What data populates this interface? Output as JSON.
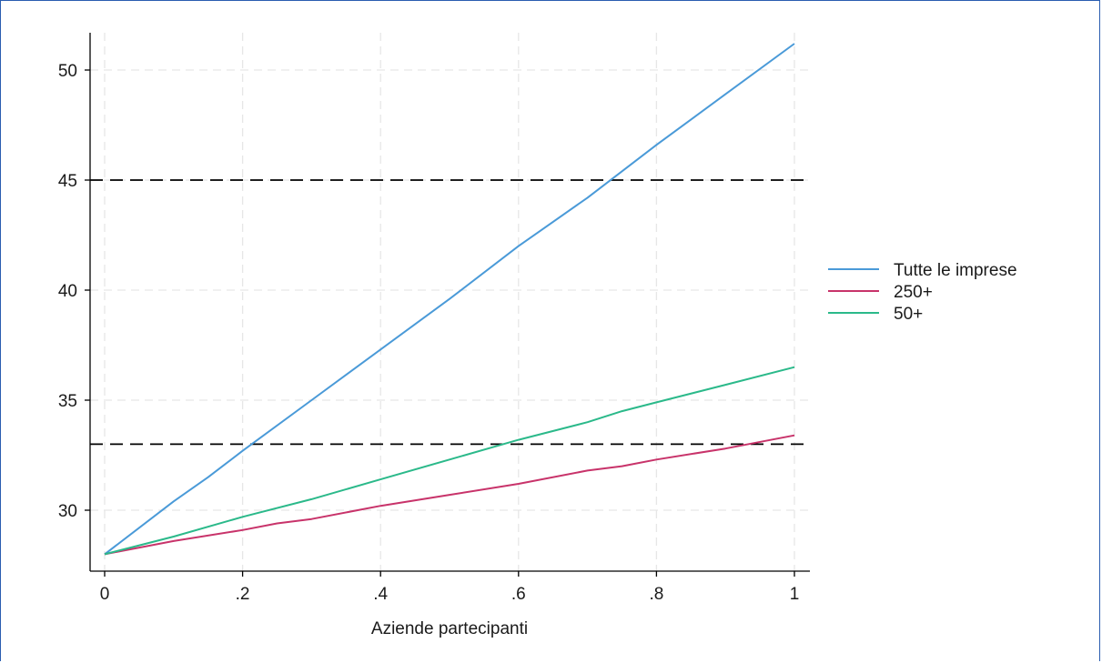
{
  "chart_data": {
    "type": "line",
    "title": "",
    "xlabel": "Aziende partecipanti",
    "ylabel": "",
    "xlim": [
      0,
      1
    ],
    "ylim": [
      27.1,
      51.8
    ],
    "x_ticks": [
      0,
      0.2,
      0.4,
      0.6,
      0.8,
      1
    ],
    "x_tick_labels": [
      "0",
      ".2",
      ".4",
      ".6",
      ".8",
      "1"
    ],
    "y_ticks": [
      30,
      35,
      40,
      45,
      50
    ],
    "y_tick_labels": [
      "30",
      "35",
      "40",
      "45",
      "50"
    ],
    "grid": true,
    "legend_position": "right",
    "reference_lines": [
      {
        "y": 45,
        "style": "dashed",
        "color": "#000000"
      },
      {
        "y": 33,
        "style": "dashed",
        "color": "#000000"
      }
    ],
    "series": [
      {
        "name": "Tutte le imprese",
        "color": "#4a9ad8",
        "x": [
          0,
          0.1,
          0.15,
          0.2,
          0.3,
          0.4,
          0.5,
          0.6,
          0.7,
          0.8,
          0.9,
          1
        ],
        "y": [
          28,
          30.4,
          31.5,
          32.7,
          35.0,
          37.3,
          39.6,
          42.0,
          44.2,
          46.6,
          48.9,
          51.2
        ]
      },
      {
        "name": "250+",
        "color": "#c8336a",
        "x": [
          0,
          0.1,
          0.2,
          0.25,
          0.3,
          0.4,
          0.5,
          0.6,
          0.7,
          0.75,
          0.8,
          0.9,
          1
        ],
        "y": [
          28,
          28.6,
          29.1,
          29.4,
          29.6,
          30.2,
          30.7,
          31.2,
          31.8,
          32.0,
          32.3,
          32.8,
          33.4
        ]
      },
      {
        "name": "50+",
        "color": "#2bb98a",
        "x": [
          0,
          0.1,
          0.2,
          0.3,
          0.4,
          0.5,
          0.6,
          0.7,
          0.75,
          0.8,
          0.9,
          1
        ],
        "y": [
          28,
          28.8,
          29.7,
          30.5,
          31.4,
          32.3,
          33.2,
          34.0,
          34.5,
          34.9,
          35.7,
          36.5
        ]
      }
    ]
  }
}
